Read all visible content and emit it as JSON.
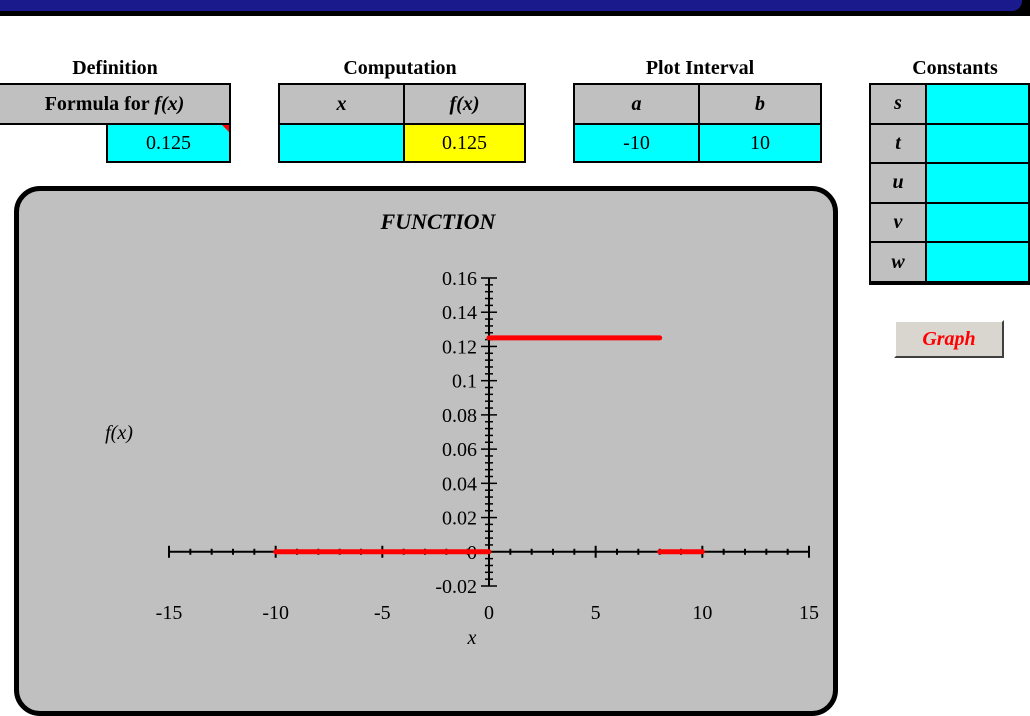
{
  "definition": {
    "header": "Definition",
    "formula_label_prefix": "Formula for ",
    "formula_label_fx": "f(x)",
    "formula_value": "0.125"
  },
  "computation": {
    "header": "Computation",
    "x_label": "x",
    "fx_label": "f(x)",
    "x_value": "",
    "fx_value": "0.125"
  },
  "plot_interval": {
    "header": "Plot Interval",
    "a_label": "a",
    "b_label": "b",
    "a_value": "-10",
    "b_value": "10"
  },
  "constants": {
    "header": "Constants",
    "items": [
      {
        "label": "s",
        "value": ""
      },
      {
        "label": "t",
        "value": ""
      },
      {
        "label": "u",
        "value": ""
      },
      {
        "label": "v",
        "value": ""
      },
      {
        "label": "w",
        "value": ""
      }
    ]
  },
  "graph_button": {
    "label": "Graph"
  },
  "colors": {
    "cyan": "#00ffff",
    "yellow": "#ffff00",
    "gray": "#c0c0c0",
    "series": "#ff0000",
    "title_bar": "#1a1a8c"
  },
  "chart_data": {
    "type": "line",
    "title": "FUNCTION",
    "xlabel": "x",
    "ylabel": "f(x)",
    "xlim": [
      -15,
      15
    ],
    "ylim": [
      -0.02,
      0.16
    ],
    "x_ticks": [
      "-15",
      "-10",
      "-5",
      "0",
      "5",
      "10",
      "15"
    ],
    "y_ticks": [
      "-0.02",
      "0",
      "0.02",
      "0.04",
      "0.06",
      "0.08",
      "0.1",
      "0.12",
      "0.14",
      "0.16"
    ],
    "grid": false,
    "segments": [
      {
        "x": [
          -10,
          0
        ],
        "y": [
          0,
          0
        ]
      },
      {
        "x": [
          0,
          8
        ],
        "y": [
          0.125,
          0.125
        ]
      },
      {
        "x": [
          8,
          10
        ],
        "y": [
          0,
          0
        ]
      }
    ]
  }
}
